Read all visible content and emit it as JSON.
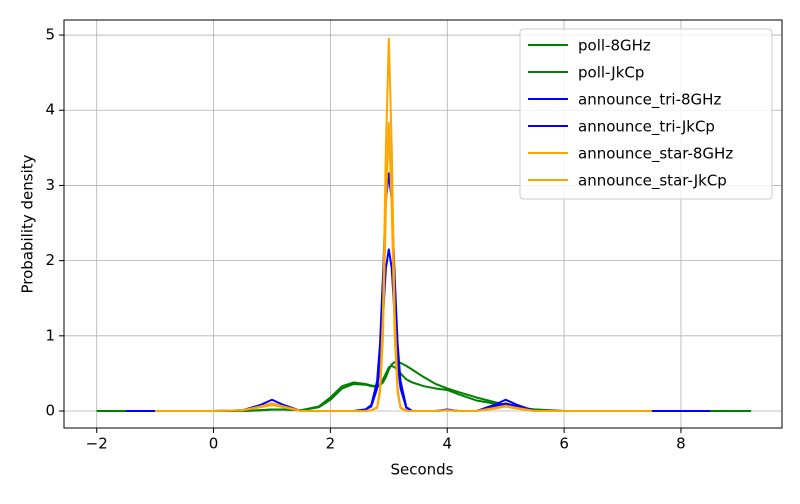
{
  "chart_data": {
    "type": "line",
    "xlabel": "Seconds",
    "ylabel": "Probability density",
    "x": [
      -2,
      -1.5,
      -1,
      -0.5,
      0,
      0.5,
      0.8,
      1,
      1.2,
      1.5,
      1.8,
      2,
      2.2,
      2.4,
      2.6,
      2.7,
      2.8,
      2.85,
      2.9,
      2.95,
      3,
      3.05,
      3.1,
      3.15,
      3.2,
      3.3,
      3.4,
      3.6,
      3.8,
      4,
      4.2,
      4.5,
      4.8,
      5,
      5.2,
      5.5,
      6,
      6.5,
      7,
      7.5,
      8,
      8.5,
      9,
      9.2
    ],
    "series": [
      {
        "name": "poll-8GHz",
        "color": "#008000",
        "values": [
          0,
          0,
          0,
          0,
          0,
          0,
          0.01,
          0.02,
          0.02,
          0.01,
          0.05,
          0.15,
          0.3,
          0.36,
          0.35,
          0.33,
          0.32,
          0.34,
          0.38,
          0.45,
          0.55,
          0.62,
          0.65,
          0.65,
          0.64,
          0.6,
          0.55,
          0.45,
          0.36,
          0.3,
          0.25,
          0.18,
          0.12,
          0.08,
          0.05,
          0.02,
          0,
          0,
          0,
          0,
          0,
          0,
          0,
          0
        ]
      },
      {
        "name": "poll-JkCp",
        "color": "#008000",
        "values": [
          0,
          0,
          0,
          0,
          0,
          0,
          0.01,
          0.02,
          0.02,
          0.01,
          0.06,
          0.18,
          0.33,
          0.38,
          0.36,
          0.34,
          0.33,
          0.36,
          0.42,
          0.5,
          0.58,
          0.6,
          0.58,
          0.55,
          0.5,
          0.42,
          0.38,
          0.33,
          0.3,
          0.28,
          0.22,
          0.14,
          0.1,
          0.07,
          0.04,
          0.02,
          0,
          0,
          0,
          0,
          0,
          0,
          0,
          0
        ]
      },
      {
        "name": "announce_tri-8GHz",
        "color": "#0000ff",
        "values": [
          null,
          0,
          0,
          0,
          0,
          0.01,
          0.08,
          0.15,
          0.08,
          0,
          0,
          0,
          0,
          0,
          0.02,
          0.08,
          0.4,
          0.9,
          1.8,
          2.8,
          3.16,
          2.8,
          1.8,
          0.9,
          0.4,
          0.05,
          0,
          0,
          0,
          0.02,
          0,
          0,
          0.08,
          0.15,
          0.08,
          0,
          0,
          0,
          0,
          0,
          0,
          0,
          null,
          null
        ]
      },
      {
        "name": "announce_tri-JkCp",
        "color": "#0000ff",
        "values": [
          null,
          0,
          0,
          0,
          0,
          0.01,
          0.06,
          0.1,
          0.06,
          0,
          0,
          0,
          0,
          0,
          0.02,
          0.06,
          0.3,
          0.65,
          1.25,
          1.9,
          2.15,
          1.9,
          1.25,
          0.65,
          0.3,
          0.04,
          0,
          0,
          0,
          0.01,
          0,
          0,
          0.06,
          0.1,
          0.06,
          0,
          0,
          0,
          0,
          0,
          0,
          0,
          null,
          null
        ]
      },
      {
        "name": "announce_star-8GHz",
        "color": "#ffa500",
        "values": [
          null,
          null,
          0,
          0,
          0,
          0.01,
          0.06,
          0.1,
          0.06,
          0,
          0,
          0,
          0,
          0,
          0,
          0.01,
          0.05,
          0.3,
          1.3,
          3.5,
          4.95,
          3.5,
          1.3,
          0.3,
          0.05,
          0,
          0,
          0,
          0,
          0.01,
          0,
          0,
          0.04,
          0.07,
          0.04,
          0,
          0,
          0,
          0,
          0,
          null,
          null,
          null,
          null
        ]
      },
      {
        "name": "announce_star-JkCp",
        "color": "#ffa500",
        "values": [
          null,
          null,
          0,
          0,
          0,
          0.01,
          0.05,
          0.08,
          0.05,
          0,
          0,
          0,
          0,
          0,
          0,
          0.01,
          0.04,
          0.25,
          1.0,
          2.7,
          3.83,
          2.7,
          1.0,
          0.25,
          0.04,
          0,
          0,
          0,
          0,
          0.01,
          0,
          0,
          0.03,
          0.06,
          0.03,
          0,
          0,
          0,
          0,
          0,
          null,
          null,
          null,
          null
        ]
      }
    ],
    "xlim": [
      -2.56,
      9.73
    ],
    "ylim": [
      -0.226,
      5.2
    ],
    "xticks": [
      {
        "value": -2,
        "label": "−2"
      },
      0,
      2,
      4,
      6,
      8
    ],
    "yticks": [
      0,
      1,
      2,
      3,
      4,
      5
    ],
    "grid": true,
    "legend": "upper right"
  }
}
